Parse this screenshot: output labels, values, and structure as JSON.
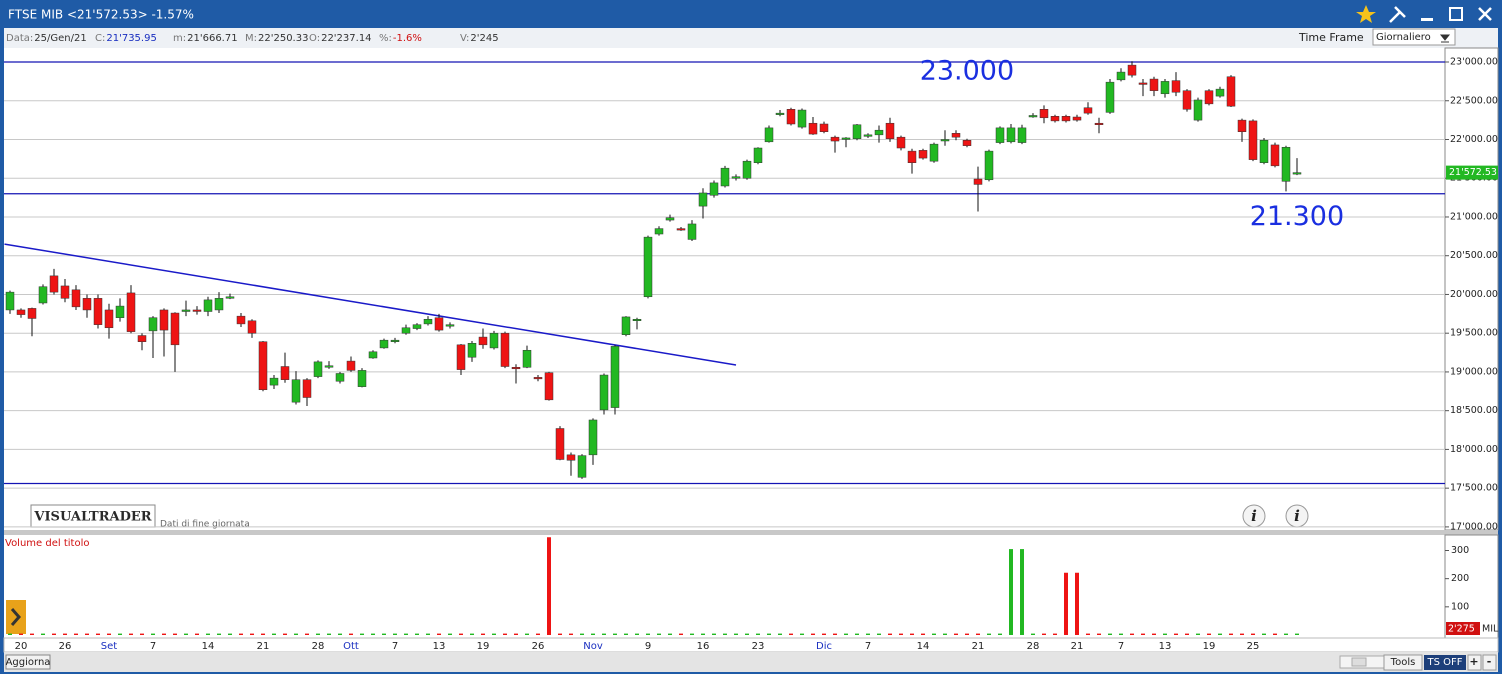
{
  "window": {
    "title": "FTSE MIB <21'572.53> -1.57%"
  },
  "info_bar": {
    "items": [
      {
        "label": "Data:",
        "value": "25/Gen/21",
        "color": "#333333"
      },
      {
        "label": "C:",
        "value": "21'735.95",
        "color": "#1a2fc0"
      },
      {
        "label": "m:",
        "value": "21'666.71",
        "color": "#333333"
      },
      {
        "label": "M:",
        "value": "22'250.33",
        "color": "#333333"
      },
      {
        "label": "O:",
        "value": "22'237.14",
        "color": "#333333"
      },
      {
        "label": "%:",
        "value": "-1.6%",
        "color": "#d01010"
      },
      {
        "label": "V:",
        "value": "2'245",
        "color": "#333333"
      }
    ],
    "time_frame_label": "Time Frame",
    "time_frame": "Giornaliero"
  },
  "chart_data": [
    {
      "type": "candlestick",
      "x": [
        null,
        "20",
        null,
        null,
        null,
        "26",
        null,
        null,
        null,
        "Set",
        null,
        null,
        null,
        "7",
        null,
        null,
        null,
        null,
        "14",
        null,
        null,
        null,
        null,
        "21",
        null,
        null,
        null,
        null,
        "28",
        null,
        null,
        "Ott",
        null,
        null,
        null,
        "7",
        null,
        null,
        null,
        "13",
        null,
        null,
        null,
        "19",
        null,
        null,
        null,
        null,
        "26",
        null,
        null,
        null,
        null,
        "Nov",
        null,
        null,
        null,
        null,
        "9",
        null,
        null,
        null,
        null,
        "16",
        null,
        null,
        null,
        null,
        "23",
        null,
        null,
        null,
        null,
        null,
        "Dic",
        null,
        null,
        null,
        "7",
        null,
        null,
        null,
        null,
        "14",
        null,
        null,
        null,
        null,
        "21",
        null,
        null,
        null,
        null,
        "28",
        null,
        null,
        null,
        "21",
        null,
        null,
        null,
        "7",
        null,
        null,
        null,
        "13",
        null,
        null,
        null,
        "19",
        null,
        null,
        null,
        "25",
        null,
        null,
        null,
        null
      ],
      "open": [
        19800,
        19800,
        19820,
        19890,
        20240,
        20110,
        20060,
        19950,
        19950,
        19800,
        19700,
        20020,
        19470,
        19530,
        19800,
        19760,
        19780,
        19800,
        19780,
        19800,
        19960,
        19720,
        19660,
        19390,
        18830,
        19070,
        18610,
        18900,
        18940,
        19070,
        18880,
        19140,
        18810,
        19180,
        19310,
        19390,
        19500,
        19560,
        19620,
        19700,
        19600,
        19350,
        19190,
        19450,
        19310,
        19500,
        19060,
        19060,
        18930,
        18990,
        18270,
        17930,
        17640,
        17930,
        18510,
        18540,
        19480,
        19670,
        19970,
        20780,
        20960,
        20850,
        20710,
        21140,
        21280,
        21400,
        21500,
        21500,
        21700,
        21970,
        22330,
        22390,
        22160,
        22210,
        22200,
        22030,
        22010,
        22010,
        22050,
        22060,
        22210,
        22030,
        21850,
        21860,
        21720,
        21990,
        22080,
        21990,
        21490,
        21480,
        21960,
        21970,
        21960,
        22300,
        22390,
        22300,
        22300,
        22290,
        22410,
        22210,
        22350,
        22770,
        22960,
        22730,
        22780,
        22590,
        22760,
        22630,
        22250,
        22630,
        22560,
        22810,
        22250,
        22240,
        21700,
        21930,
        21460,
        21560
      ],
      "high": [
        20050,
        19820,
        19830,
        20130,
        20330,
        20200,
        20120,
        20000,
        20000,
        19880,
        19950,
        20120,
        19500,
        19720,
        19820,
        19770,
        19920,
        19850,
        19970,
        20030,
        20010,
        19760,
        19680,
        19400,
        18960,
        19250,
        19010,
        18920,
        19150,
        19140,
        19000,
        19200,
        19050,
        19280,
        19430,
        19440,
        19610,
        19630,
        19720,
        19750,
        19640,
        19360,
        19400,
        19560,
        19530,
        19520,
        19100,
        19340,
        18960,
        19000,
        18300,
        17960,
        17940,
        18400,
        18980,
        19350,
        19720,
        19700,
        20760,
        20880,
        21030,
        20870,
        20960,
        21370,
        21470,
        21660,
        21550,
        21740,
        21900,
        22180,
        22380,
        22410,
        22400,
        22290,
        22230,
        22050,
        22030,
        22200,
        22080,
        22180,
        22280,
        22050,
        21880,
        21880,
        21960,
        22120,
        22120,
        22010,
        21650,
        21870,
        22170,
        22200,
        22190,
        22340,
        22440,
        22320,
        22320,
        22320,
        22480,
        22280,
        22780,
        22920,
        23010,
        22780,
        22810,
        22780,
        22870,
        22650,
        22540,
        22650,
        22680,
        22830,
        22270,
        22260,
        22020,
        21960,
        21920,
        21760
      ],
      "low": [
        19750,
        19700,
        19460,
        19870,
        20000,
        19900,
        19800,
        19700,
        19560,
        19430,
        19650,
        19500,
        19280,
        19180,
        19200,
        19000,
        19720,
        19740,
        19720,
        19760,
        19940,
        19580,
        19440,
        18750,
        18780,
        18860,
        18580,
        18560,
        18920,
        19040,
        18850,
        19000,
        18800,
        19170,
        19300,
        19370,
        19480,
        19540,
        19600,
        19520,
        19560,
        18960,
        19130,
        19300,
        19290,
        19050,
        18850,
        19050,
        18880,
        18630,
        17860,
        17660,
        17620,
        17800,
        18450,
        18450,
        19460,
        19550,
        19950,
        20760,
        20940,
        20820,
        20690,
        20980,
        21250,
        21380,
        21470,
        21480,
        21680,
        21960,
        22300,
        22180,
        22140,
        22060,
        22080,
        21830,
        21900,
        21990,
        22020,
        21960,
        21970,
        21860,
        21560,
        21740,
        21700,
        21920,
        21990,
        21900,
        21070,
        21460,
        21940,
        21950,
        21940,
        22280,
        22210,
        22220,
        22220,
        22230,
        22320,
        22080,
        22330,
        22750,
        22800,
        22560,
        22560,
        22540,
        22560,
        22360,
        22230,
        22440,
        22540,
        22420,
        21970,
        21720,
        21680,
        21640,
        21330,
        21540
      ],
      "close": [
        20030,
        19740,
        19690,
        20100,
        20030,
        19950,
        19840,
        19800,
        19610,
        19570,
        19850,
        19520,
        19390,
        19700,
        19540,
        19350,
        19800,
        19790,
        19930,
        19950,
        19970,
        19620,
        19500,
        18770,
        18920,
        18900,
        18900,
        18670,
        19130,
        19080,
        18980,
        19020,
        19020,
        19260,
        19410,
        19410,
        19570,
        19610,
        19680,
        19540,
        19610,
        19030,
        19370,
        19350,
        19500,
        19070,
        19050,
        19280,
        18920,
        18640,
        17870,
        17860,
        17920,
        18380,
        18960,
        19330,
        19710,
        19680,
        20740,
        20850,
        20990,
        20840,
        20910,
        21310,
        21440,
        21630,
        21520,
        21720,
        21890,
        22150,
        22340,
        22200,
        22380,
        22070,
        22100,
        21980,
        22020,
        22190,
        22060,
        22120,
        22010,
        21890,
        21700,
        21760,
        21940,
        22000,
        22030,
        21920,
        21420,
        21850,
        22150,
        22150,
        22150,
        22310,
        22280,
        22240,
        22240,
        22250,
        22340,
        22200,
        22740,
        22870,
        22830,
        22720,
        22630,
        22750,
        22610,
        22390,
        22510,
        22460,
        22650,
        22430,
        22100,
        21740,
        21990,
        21660,
        21900,
        21572.53
      ],
      "up_color": "#22b822",
      "down_color": "#ee1414",
      "ylim": [
        16960,
        23155
      ],
      "yticks": [
        {
          "value": 17000,
          "label": "17'000.00"
        },
        {
          "value": 17500,
          "label": "17'500.00"
        },
        {
          "value": 18000,
          "label": "18'000.00"
        },
        {
          "value": 18500,
          "label": "18'500.00"
        },
        {
          "value": 19000,
          "label": "19'000.00"
        },
        {
          "value": 19500,
          "label": "19'500.00"
        },
        {
          "value": 20000,
          "label": "20'000.00"
        },
        {
          "value": 20500,
          "label": "20'500.00"
        },
        {
          "value": 21000,
          "label": "21'000.00"
        },
        {
          "value": 21500,
          "label": "21'500.00"
        },
        {
          "value": 22000,
          "label": "22'000.00"
        },
        {
          "value": 22500,
          "label": "22'500.00"
        },
        {
          "value": 23000,
          "label": "23'000.00"
        }
      ],
      "grid": true,
      "levels": [
        {
          "value": 23000,
          "color": "#1414b4"
        },
        {
          "value": 21300,
          "color": "#1414b4"
        },
        {
          "value": 17560,
          "color": "#1414b4"
        }
      ],
      "trendline": {
        "x": [
          -0.5,
          66
        ],
        "y": [
          20650,
          19090
        ],
        "color": "#1a1ac8"
      },
      "annotations": [
        {
          "text": "23.000",
          "x": 82.7,
          "y": 22870,
          "color": "#1a2fe0"
        },
        {
          "text": "21.300",
          "x": 112.7,
          "y": 20990,
          "color": "#1a2fe0"
        }
      ],
      "last_price_label": "21'572.53"
    },
    {
      "type": "bar",
      "title": "Volume del titolo",
      "values": [
        5,
        5,
        5,
        5,
        5,
        5,
        5,
        5,
        5,
        5,
        5,
        5,
        5,
        5,
        5,
        5,
        5,
        5,
        5,
        5,
        5,
        5,
        5,
        5,
        5,
        5,
        5,
        5,
        5,
        5,
        5,
        5,
        5,
        5,
        5,
        5,
        5,
        5,
        5,
        5,
        5,
        5,
        5,
        5,
        5,
        5,
        5,
        5,
        5,
        347,
        5,
        5,
        5,
        5,
        5,
        5,
        5,
        5,
        5,
        5,
        5,
        5,
        5,
        5,
        5,
        5,
        5,
        5,
        5,
        5,
        5,
        5,
        5,
        5,
        5,
        5,
        5,
        5,
        5,
        5,
        5,
        5,
        5,
        5,
        5,
        5,
        5,
        5,
        5,
        5,
        5,
        305,
        305,
        5,
        5,
        5,
        221,
        221,
        5,
        5,
        5,
        5,
        5,
        5,
        5,
        5,
        5,
        5,
        5,
        5,
        5,
        5,
        5,
        5,
        5,
        5,
        5,
        5
      ],
      "ylim": [
        0,
        355
      ],
      "yticks": [
        100,
        200,
        300
      ],
      "last_value_label": "2'275",
      "unit": "MIL"
    }
  ],
  "branding": {
    "logo": "VISUALTRADER",
    "note": "Dati di fine giornata"
  },
  "toolbar": {
    "refresh": "Aggiorna",
    "tools": "Tools",
    "ts": "TS OFF",
    "zoom_in": "+",
    "zoom_out": "-"
  }
}
